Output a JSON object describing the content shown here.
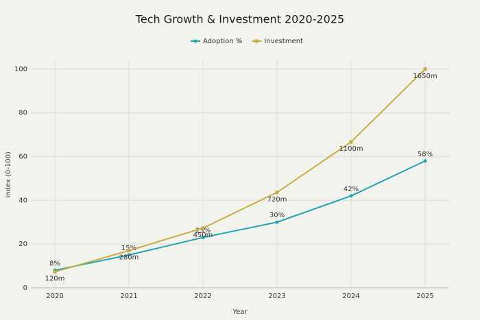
{
  "chart_data": {
    "type": "line",
    "title": "Tech Growth & Investment 2020-2025",
    "x_label": "Year",
    "y_label": "Index (0-100)",
    "categories": [
      "2020",
      "2021",
      "2022",
      "2023",
      "2024",
      "2025"
    ],
    "series": [
      {
        "name": "Adoption %",
        "color": "#1fa6b6",
        "marker": "circle",
        "values": [
          8,
          15,
          23,
          30,
          42,
          58
        ],
        "value_labels": [
          "8%",
          "15%",
          "23%",
          "30%",
          "42%",
          "58%"
        ]
      },
      {
        "name": "Investment",
        "color": "#c8ad42",
        "marker": "square",
        "values": [
          7.3,
          17,
          27.3,
          43.6,
          66.7,
          100
        ],
        "value_labels": [
          "120m",
          "280m",
          "450m",
          "720m",
          "1100m",
          "1650m"
        ]
      }
    ],
    "ylim": [
      0,
      104
    ],
    "yticks": [
      0,
      20,
      40,
      60,
      80,
      100
    ],
    "grid": true
  }
}
